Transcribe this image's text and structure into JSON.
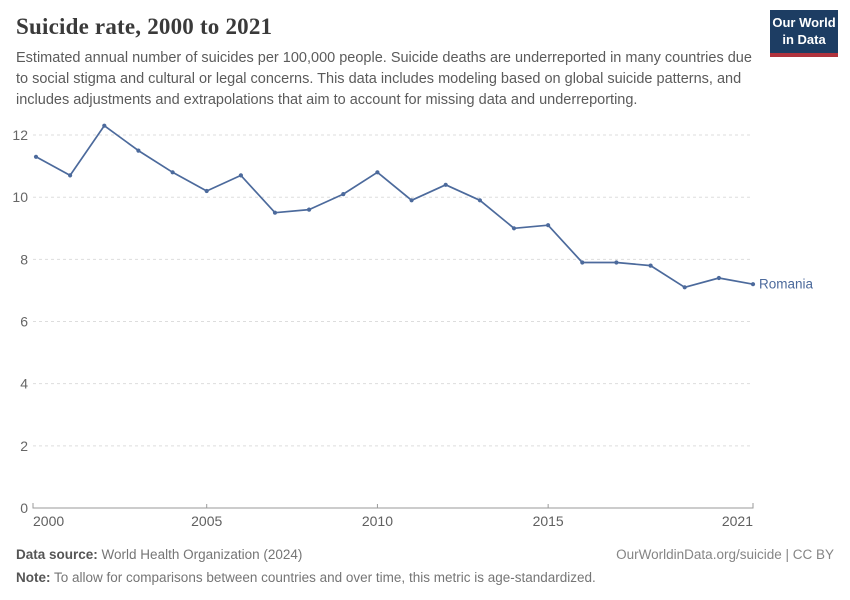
{
  "header": {
    "title": "Suicide rate, 2000 to 2021",
    "subtitle": "Estimated annual number of suicides per 100,000 people. Suicide deaths are underreported in many countries due to social stigma and cultural or legal concerns. This data includes modeling based on global suicide patterns, and includes adjustments and extrapolations that aim to account for missing data and underreporting.",
    "logo": {
      "line1": "Our World",
      "line2": "in Data",
      "bg_color": "#1d3d63",
      "accent_color": "#b0333d"
    }
  },
  "chart_data": {
    "type": "line",
    "title": "Suicide rate, 2000 to 2021",
    "xlabel": "",
    "ylabel": "",
    "x": [
      2000,
      2001,
      2002,
      2003,
      2004,
      2005,
      2006,
      2007,
      2008,
      2009,
      2010,
      2011,
      2012,
      2013,
      2014,
      2015,
      2016,
      2017,
      2018,
      2019,
      2020,
      2021
    ],
    "xticks": [
      2000,
      2005,
      2010,
      2015,
      2021
    ],
    "yticks": [
      0,
      2,
      4,
      6,
      8,
      10,
      12
    ],
    "ylim": [
      0,
      13
    ],
    "grid": true,
    "legend": "end-of-line-label",
    "series": [
      {
        "name": "Romania",
        "color": "#4c6a9c",
        "values": [
          11.3,
          10.7,
          12.3,
          11.5,
          10.8,
          10.2,
          10.7,
          9.5,
          9.6,
          10.1,
          10.8,
          9.9,
          10.4,
          9.9,
          9.0,
          9.1,
          7.9,
          7.9,
          7.8,
          7.1,
          7.4,
          7.2
        ]
      }
    ]
  },
  "footer": {
    "source_label": "Data source:",
    "source_value": "World Health Organization (2024)",
    "link": "OurWorldinData.org/suicide | CC BY",
    "note_label": "Note:",
    "note_value": "To allow for comparisons between countries and over time, this metric is age-standardized."
  }
}
